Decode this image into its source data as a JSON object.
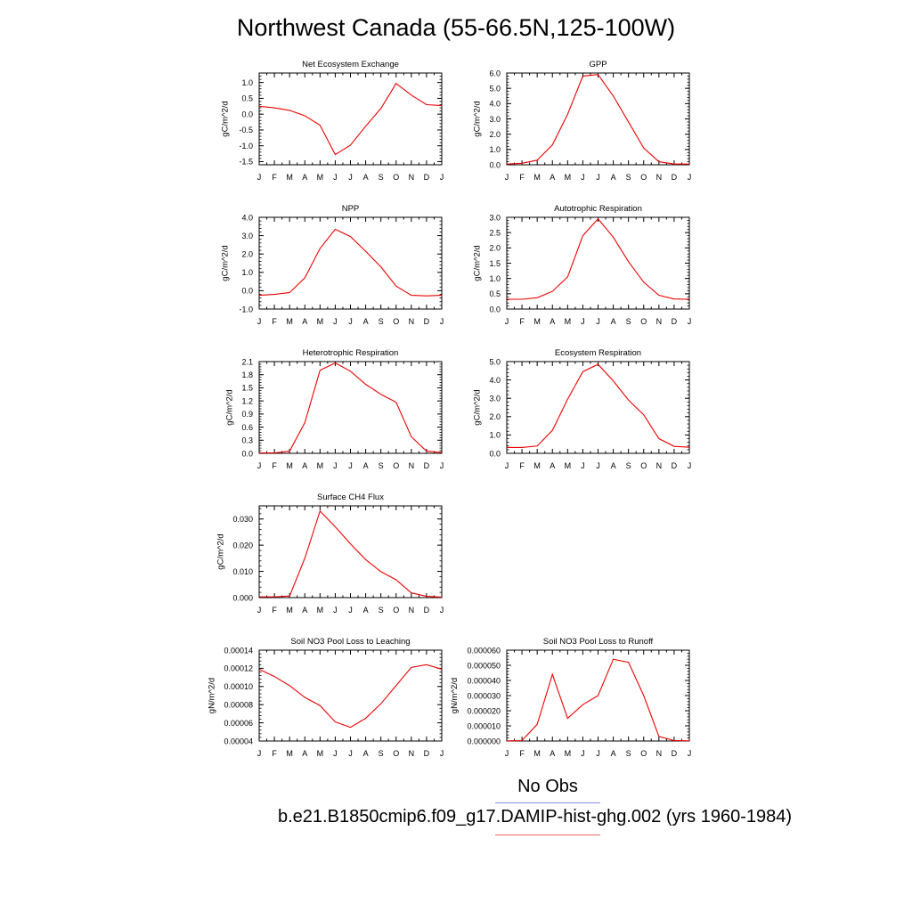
{
  "page": {
    "title": "Northwest Canada (55-66.5N,125-100W)"
  },
  "legend": {
    "obs_label": "No Obs",
    "obs_color": "#8a8ef0",
    "model_label": "b.e21.B1850cmip6.f09_g17.DAMIP-hist-ghg.002 (yrs 1960-1984)",
    "model_color": "#ee0000"
  },
  "chart_data": [
    {
      "type": "line",
      "title": "Net Ecosystem Exchange",
      "ylabel": "gC/m^2/d",
      "x": [
        "J",
        "F",
        "M",
        "A",
        "M",
        "J",
        "J",
        "A",
        "S",
        "O",
        "N",
        "D",
        "J"
      ],
      "ylim": [
        -1.6,
        1.3
      ],
      "yticks": [
        -1.5,
        -1.0,
        -0.5,
        0.0,
        0.5,
        1.0
      ],
      "yticklabels": [
        "-1.5",
        "-1.0",
        "-0.5",
        "0.0",
        "0.5",
        "1.0"
      ],
      "series": [
        {
          "values": [
            0.25,
            0.2,
            0.12,
            -0.05,
            -0.35,
            -1.28,
            -0.98,
            -0.38,
            0.18,
            0.97,
            0.6,
            0.3,
            0.27
          ],
          "color": "#ee0000"
        }
      ]
    },
    {
      "type": "line",
      "title": "GPP",
      "ylabel": "gC/m^2/d",
      "x": [
        "J",
        "F",
        "M",
        "A",
        "M",
        "J",
        "J",
        "A",
        "S",
        "O",
        "N",
        "D",
        "J"
      ],
      "ylim": [
        0.0,
        6.0
      ],
      "yticks": [
        0.0,
        1.0,
        2.0,
        3.0,
        4.0,
        5.0,
        6.0
      ],
      "yticklabels": [
        "0.0",
        "1.0",
        "2.0",
        "3.0",
        "4.0",
        "5.0",
        "6.0"
      ],
      "series": [
        {
          "values": [
            0.05,
            0.1,
            0.3,
            1.3,
            3.3,
            5.8,
            5.9,
            4.5,
            2.8,
            1.1,
            0.2,
            0.05,
            0.05
          ],
          "color": "#ee0000"
        }
      ]
    },
    {
      "type": "line",
      "title": "NPP",
      "ylabel": "gC/m^2/d",
      "x": [
        "J",
        "F",
        "M",
        "A",
        "M",
        "J",
        "J",
        "A",
        "S",
        "O",
        "N",
        "D",
        "J"
      ],
      "ylim": [
        -1.0,
        4.0
      ],
      "yticks": [
        -1.0,
        0.0,
        1.0,
        2.0,
        3.0,
        4.0
      ],
      "yticklabels": [
        "-1.0",
        "0.0",
        "1.0",
        "2.0",
        "3.0",
        "4.0"
      ],
      "series": [
        {
          "values": [
            -0.25,
            -0.2,
            -0.1,
            0.7,
            2.3,
            3.35,
            2.95,
            2.15,
            1.3,
            0.25,
            -0.25,
            -0.28,
            -0.25
          ],
          "color": "#ee0000"
        }
      ]
    },
    {
      "type": "line",
      "title": "Autotrophic Respiration",
      "ylabel": "gC/m^2/d",
      "x": [
        "J",
        "F",
        "M",
        "A",
        "M",
        "J",
        "J",
        "A",
        "S",
        "O",
        "N",
        "D",
        "J"
      ],
      "ylim": [
        0.0,
        3.0
      ],
      "yticks": [
        0.0,
        0.5,
        1.0,
        1.5,
        2.0,
        2.5,
        3.0
      ],
      "yticklabels": [
        "0.0",
        "0.5",
        "1.0",
        "1.5",
        "2.0",
        "2.5",
        "3.0"
      ],
      "series": [
        {
          "values": [
            0.32,
            0.32,
            0.37,
            0.58,
            1.05,
            2.4,
            2.95,
            2.35,
            1.55,
            0.88,
            0.45,
            0.33,
            0.32
          ],
          "color": "#ee0000"
        }
      ]
    },
    {
      "type": "line",
      "title": "Heterotrophic Respiration",
      "ylabel": "gC/m^2/d",
      "x": [
        "J",
        "F",
        "M",
        "A",
        "M",
        "J",
        "J",
        "A",
        "S",
        "O",
        "N",
        "D",
        "J"
      ],
      "ylim": [
        0.0,
        2.1
      ],
      "yticks": [
        0.0,
        0.3,
        0.6,
        0.9,
        1.2,
        1.5,
        1.8,
        2.1
      ],
      "yticklabels": [
        "0.0",
        "0.3",
        "0.6",
        "0.9",
        "1.2",
        "1.5",
        "1.8",
        "2.1"
      ],
      "series": [
        {
          "values": [
            0.01,
            0.01,
            0.05,
            0.7,
            1.9,
            2.07,
            1.88,
            1.58,
            1.35,
            1.17,
            0.38,
            0.05,
            0.02
          ],
          "color": "#ee0000"
        }
      ]
    },
    {
      "type": "line",
      "title": "Ecosystem Respiration",
      "ylabel": "gC/m^2/d",
      "x": [
        "J",
        "F",
        "M",
        "A",
        "M",
        "J",
        "J",
        "A",
        "S",
        "O",
        "N",
        "D",
        "J"
      ],
      "ylim": [
        0.0,
        5.0
      ],
      "yticks": [
        0.0,
        1.0,
        2.0,
        3.0,
        4.0,
        5.0
      ],
      "yticklabels": [
        "0.0",
        "1.0",
        "2.0",
        "3.0",
        "4.0",
        "5.0"
      ],
      "series": [
        {
          "values": [
            0.32,
            0.32,
            0.4,
            1.25,
            2.95,
            4.45,
            4.85,
            3.95,
            2.9,
            2.1,
            0.8,
            0.38,
            0.33
          ],
          "color": "#ee0000"
        }
      ]
    },
    {
      "type": "line",
      "title": "Surface CH4 Flux",
      "ylabel": "gC/m^2/d",
      "x": [
        "J",
        "F",
        "M",
        "A",
        "M",
        "J",
        "J",
        "A",
        "S",
        "O",
        "N",
        "D",
        "J"
      ],
      "ylim": [
        0.0,
        0.035
      ],
      "yticks": [
        0.0,
        0.01,
        0.02,
        0.03
      ],
      "yticklabels": [
        "0.000",
        "0.010",
        "0.020",
        "0.030"
      ],
      "series": [
        {
          "values": [
            0.0003,
            0.0003,
            0.0006,
            0.015,
            0.033,
            0.027,
            0.0205,
            0.0145,
            0.0099,
            0.0068,
            0.0018,
            0.0005,
            0.0002
          ],
          "color": "#ee0000"
        }
      ]
    },
    {
      "type": "line",
      "title": "Soil NO3 Pool Loss to Leaching",
      "ylabel": "gN/m^2/d",
      "x": [
        "J",
        "F",
        "M",
        "A",
        "M",
        "J",
        "J",
        "A",
        "S",
        "O",
        "N",
        "D",
        "J"
      ],
      "ylim": [
        4e-05,
        0.00014
      ],
      "yticks": [
        4e-05,
        6e-05,
        8e-05,
        0.0001,
        0.00012,
        0.00014
      ],
      "yticklabels": [
        "0.00004",
        "0.00006",
        "0.00008",
        "0.00010",
        "0.00012",
        "0.00014"
      ],
      "series": [
        {
          "values": [
            0.000119,
            0.000111,
            0.000101,
            8.8e-05,
            7.9e-05,
            6.1e-05,
            5.5e-05,
            6.5e-05,
            8.1e-05,
            0.000101,
            0.000121,
            0.000124,
            0.000119
          ],
          "color": "#ee0000"
        }
      ]
    },
    {
      "type": "line",
      "title": "Soil NO3 Pool Loss to Runoff",
      "ylabel": "gN/m^2/d",
      "x": [
        "J",
        "F",
        "M",
        "A",
        "M",
        "J",
        "J",
        "A",
        "S",
        "O",
        "N",
        "D",
        "J"
      ],
      "ylim": [
        0.0,
        6e-05
      ],
      "yticks": [
        0.0,
        1e-05,
        2e-05,
        3e-05,
        4e-05,
        5e-05,
        6e-05
      ],
      "yticklabels": [
        "0.000000",
        "0.000010",
        "0.000020",
        "0.000030",
        "0.000040",
        "0.000050",
        "0.000060"
      ],
      "series": [
        {
          "values": [
            1e-07,
            3e-07,
            1.1e-05,
            4.4e-05,
            1.5e-05,
            2.4e-05,
            3e-05,
            5.4e-05,
            5.2e-05,
            3e-05,
            3e-06,
            3e-07,
            1e-07
          ],
          "color": "#ee0000"
        }
      ]
    }
  ]
}
